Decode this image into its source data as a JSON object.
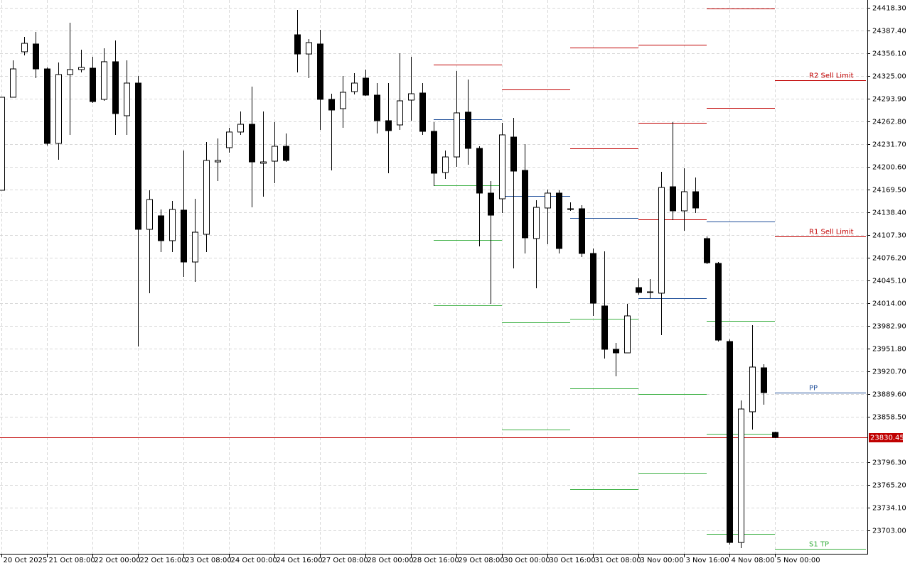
{
  "chart_data": {
    "type": "candlestick",
    "categories": [
      "20 Oct 2025",
      null,
      null,
      null,
      "21 Oct 08:00",
      null,
      null,
      null,
      "22 Oct 00:00",
      null,
      null,
      null,
      "22 Oct 16:00",
      null,
      null,
      null,
      "23 Oct 08:00",
      null,
      null,
      null,
      "24 Oct 00:00",
      null,
      null,
      null,
      "24 Oct 16:00",
      null,
      null,
      null,
      "27 Oct 08:00",
      null,
      null,
      null,
      "28 Oct 00:00",
      null,
      null,
      null,
      "28 Oct 16:00",
      null,
      null,
      null,
      "29 Oct 08:00",
      null,
      null,
      null,
      "30 Oct 00:00",
      null,
      null,
      null,
      "30 Oct 16:00",
      null,
      null,
      null,
      "31 Oct 08:00",
      null,
      null,
      null,
      "3 Nov 00:00",
      null,
      null,
      null,
      "3 Nov 16:00",
      null,
      null,
      null,
      "4 Nov 08:00",
      null,
      null,
      null,
      "5 Nov 00:00"
    ],
    "open": [
      24168.6,
      24295.9,
      24358.1,
      24368.8,
      24334.7,
      24232.7,
      24327.0,
      24333.8,
      24335.7,
      24293.0,
      24344.5,
      24270.6,
      24315.3,
      24115.1,
      24133.6,
      24099.6,
      24141.4,
      24070.4,
      24108.3,
      24207.4,
      24226.9,
      24248.3,
      24258.9,
      24205.5,
      24208.4,
      24228.8,
      24381.4,
      24355.1,
      24368.8,
      24293.0,
      24280.3,
      24303.6,
      24322.1,
      24298.8,
      24263.8,
      24258.0,
      24292.0,
      24301.7,
      24249.2,
      24192.9,
      24214.2,
      24275.5,
      24225.9,
      24164.7,
      24156.9,
      24241.4,
      24195.8,
      24102.5,
      24144.3,
      24164.7,
      24143.3,
      24143.3,
      24082.1,
      24010.2,
      23950.9,
      23946.0,
      24035.4,
      24028.6,
      24027.7,
      24173.4,
      24140.4,
      24166.6,
      24102.5,
      24068.5,
      23961.6,
      23686.5,
      23865.4,
      23925.6,
      23837.2
    ],
    "high": [
      24295.9,
      24346.4,
      24378.5,
      24385.3,
      24336.7,
      24343.5,
      24397.9,
      24361.0,
      24351.3,
      24362.9,
      24373.6,
      24346.4,
      24325.0,
      24168.6,
      24142.3,
      24154.0,
      24223.0,
      24156.9,
      24234.6,
      24239.5,
      24254.1,
      24276.4,
      24310.4,
      24276.4,
      24261.9,
      24246.3,
      24415.4,
      24375.6,
      24388.2,
      24300.7,
      24325.0,
      24328.9,
      24333.8,
      24315.3,
      24315.3,
      24356.1,
      24351.3,
      24315.3,
      24261.9,
      24223.0,
      24331.8,
      24320.2,
      24228.8,
      24181.2,
      24260.9,
      24267.7,
      24231.7,
      24155.0,
      24169.5,
      24168.6,
      24152.0,
      24148.2,
      24088.9,
      24085.0,
      23959.6,
      24013.1,
      24048.1,
      24047.1,
      24193.8,
      24261.9,
      24198.7,
      24186.1,
      24105.4,
      24070.4,
      23964.5,
      23880.9,
      23983.9,
      23930.5,
      23838.1
    ],
    "low": [
      24168.6,
      24295.9,
      24353.2,
      24322.1,
      24229.8,
      24210.3,
      24244.4,
      24329.9,
      24288.1,
      24291.0,
      24244.4,
      24244.4,
      23954.8,
      24027.7,
      24084.0,
      24084.0,
      24050.0,
      24043.2,
      24084.0,
      24181.2,
      24220.1,
      24244.4,
      24145.2,
      24159.8,
      24178.3,
      24207.4,
      24329.9,
      24322.1,
      24251.2,
      24195.8,
      24254.1,
      24299.8,
      24297.8,
      24246.3,
      24191.9,
      24251.2,
      24263.8,
      24244.4,
      24174.4,
      24184.1,
      24200.6,
      24203.5,
      24091.8,
      24013.1,
      24137.5,
      24061.7,
      24082.1,
      24034.5,
      24094.7,
      24082.1,
      24140.4,
      24077.2,
      23996.6,
      23938.2,
      23914.0,
      23946.0,
      24025.7,
      24020.8,
      23970.3,
      24127.7,
      24113.2,
      24137.5,
      24067.5,
      23961.6,
      23683.6,
      23678.8,
      23841.1,
      23875.1,
      23829.4
    ],
    "close": [
      24295.9,
      24334.7,
      24369.7,
      24334.7,
      24232.7,
      24327.0,
      24333.8,
      24336.7,
      24290.0,
      24344.5,
      24273.5,
      24315.3,
      24115.1,
      24155.9,
      24099.6,
      24142.3,
      24070.4,
      24111.2,
      24209.4,
      24209.4,
      24248.3,
      24258.9,
      24207.4,
      24207.4,
      24228.8,
      24209.4,
      24355.1,
      24370.7,
      24293.0,
      24278.4,
      24302.7,
      24315.3,
      24298.8,
      24263.8,
      24250.2,
      24291.0,
      24300.7,
      24249.2,
      24191.9,
      24214.2,
      24274.5,
      24225.9,
      24164.7,
      24134.5,
      24244.4,
      24194.8,
      24103.5,
      24145.2,
      24164.7,
      24088.9,
      24142.3,
      24082.1,
      24014.0,
      23950.9,
      23946.0,
      23996.6,
      24028.6,
      24029.6,
      24172.4,
      24140.4,
      24166.6,
      24144.3,
      24069.4,
      23963.5,
      23686.5,
      23869.2,
      23926.6,
      23891.6,
      23830.45
    ],
    "up_color": "#ffffff",
    "down_color": "#000000",
    "ylim": [
      23671.0,
      24429.0
    ],
    "yticks": [
      {
        "value": 24418.3,
        "label": "24418.30"
      },
      {
        "value": 24387.4,
        "label": "24387.40"
      },
      {
        "value": 24356.1,
        "label": "24356.10"
      },
      {
        "value": 24325.0,
        "label": "24325.00"
      },
      {
        "value": 24293.9,
        "label": "24293.90"
      },
      {
        "value": 24262.8,
        "label": "24262.80"
      },
      {
        "value": 24231.7,
        "label": "24231.70"
      },
      {
        "value": 24200.6,
        "label": "24200.60"
      },
      {
        "value": 24169.5,
        "label": "24169.50"
      },
      {
        "value": 24138.4,
        "label": "24138.40"
      },
      {
        "value": 24107.3,
        "label": "24107.30"
      },
      {
        "value": 24076.2,
        "label": "24076.20"
      },
      {
        "value": 24045.1,
        "label": "24045.10"
      },
      {
        "value": 24014.0,
        "label": "24014.00"
      },
      {
        "value": 23982.9,
        "label": "23982.90"
      },
      {
        "value": 23951.8,
        "label": "23951.80"
      },
      {
        "value": 23920.7,
        "label": "23920.70"
      },
      {
        "value": 23889.6,
        "label": "23889.60"
      },
      {
        "value": 23858.5,
        "label": "23858.50"
      },
      {
        "value": 23796.3,
        "label": "23796.30"
      },
      {
        "value": 23765.2,
        "label": "23765.20"
      },
      {
        "value": 23734.1,
        "label": "23734.10"
      },
      {
        "value": 23703.0,
        "label": "23703.00"
      }
    ],
    "grid": true,
    "current_price": 23830.45,
    "current_price_color": "#c00000",
    "pivot_days": [
      {
        "levels": [
          {
            "color": "#c00000",
            "value": 24340.6
          },
          {
            "color": "#1f4e99",
            "value": 24265.7
          },
          {
            "color": "#3cb043",
            "value": 24175.4
          },
          {
            "color": "#3cb043",
            "value": 24100.5
          },
          {
            "color": "#3cb043",
            "value": 24011.1
          }
        ]
      },
      {
        "levels": [
          {
            "color": "#c00000",
            "value": 24306.6
          },
          {
            "color": "#1f4e99",
            "value": 24160.8
          },
          {
            "color": "#3cb043",
            "value": 23987.8
          },
          {
            "color": "#3cb043",
            "value": 23841.1
          }
        ]
      },
      {
        "levels": [
          {
            "color": "#c00000",
            "value": 24363.9
          },
          {
            "color": "#c00000",
            "value": 24225.9
          },
          {
            "color": "#1f4e99",
            "value": 24130.7
          },
          {
            "color": "#3cb043",
            "value": 23992.7
          },
          {
            "color": "#3cb043",
            "value": 23897.4
          },
          {
            "color": "#3cb043",
            "value": 23759.4
          }
        ]
      },
      {
        "levels": [
          {
            "color": "#c00000",
            "value": 24367.8
          },
          {
            "color": "#c00000",
            "value": 24260.9
          },
          {
            "color": "#c00000",
            "value": 24128.7
          },
          {
            "color": "#1f4e99",
            "value": 24020.8
          },
          {
            "color": "#3cb043",
            "value": 23889.7
          },
          {
            "color": "#3cb043",
            "value": 23781.8
          }
        ]
      },
      {
        "levels": [
          {
            "color": "#c00000",
            "value": 24417.3
          },
          {
            "color": "#c00000",
            "value": 24281.3
          },
          {
            "color": "#1f4e99",
            "value": 24125.8
          },
          {
            "color": "#3cb043",
            "value": 23989.8
          },
          {
            "color": "#3cb043",
            "value": 23835.2
          },
          {
            "color": "#3cb043",
            "value": 23698.2
          }
        ]
      },
      {
        "levels": [
          {
            "color": "#c00000",
            "value": 24319.2,
            "label": "R2 Sell Limit"
          },
          {
            "color": "#c00000",
            "value": 24105.4,
            "label": "R1 Sell Limit"
          },
          {
            "color": "#1f4e99",
            "value": 23891.6,
            "label": "PP"
          },
          {
            "color": "#3cb043",
            "value": 23677.8,
            "label": "S1 TP"
          }
        ]
      }
    ]
  }
}
